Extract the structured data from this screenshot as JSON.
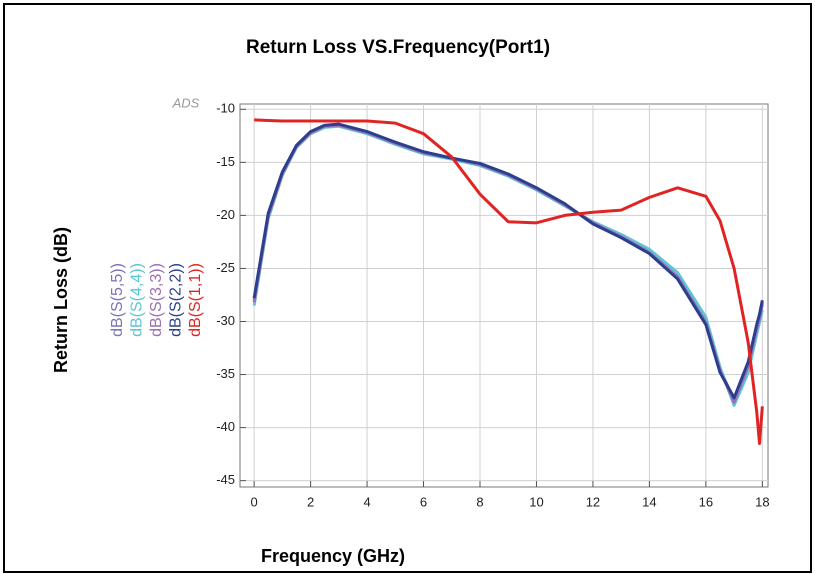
{
  "chart_data": {
    "type": "line",
    "title": "Return Loss VS.Frequency(Port1)",
    "xlabel": "Frequency (GHz)",
    "ylabel": "Return Loss (dB)",
    "annotation": "ADS",
    "x": [
      0,
      0.5,
      1,
      1.5,
      2,
      2.5,
      3,
      4,
      5,
      6,
      7,
      8,
      9,
      10,
      11,
      12,
      13,
      14,
      15,
      16,
      16.5,
      17,
      17.5,
      17.8,
      17.9,
      18
    ],
    "series": [
      {
        "name": "dB(S(5,5))",
        "color": "#7a74b8",
        "values": [
          -28,
          -20,
          -16,
          -13.5,
          -12.2,
          -11.6,
          -11.5,
          -12.2,
          -13.2,
          -14.1,
          -14.6,
          -15.2,
          -16.2,
          -17.5,
          -19,
          -20.7,
          -22,
          -23.5,
          -25.8,
          -30,
          -34.5,
          -37.4,
          -34,
          -30.5,
          -29.5,
          -28.2
        ]
      },
      {
        "name": "dB(S(4,4))",
        "color": "#5cc6d2",
        "values": [
          -28.5,
          -20.3,
          -16.2,
          -13.6,
          -12.3,
          -11.7,
          -11.6,
          -12.3,
          -13.3,
          -14.2,
          -14.7,
          -15.3,
          -16.3,
          -17.6,
          -19.1,
          -20.6,
          -21.8,
          -23.2,
          -25.4,
          -29.6,
          -34.3,
          -37.9,
          -34.8,
          -31.2,
          -30.1,
          -28.9
        ]
      },
      {
        "name": "dB(S(3,3))",
        "color": "#9c6fb6",
        "values": [
          -28.2,
          -20.1,
          -16.1,
          -13.5,
          -12.2,
          -11.6,
          -11.5,
          -12.2,
          -13.2,
          -14.1,
          -14.6,
          -15.2,
          -16.2,
          -17.5,
          -19.0,
          -20.7,
          -22.0,
          -23.5,
          -25.8,
          -30.1,
          -34.6,
          -37.6,
          -34.2,
          -30.7,
          -29.7,
          -28.4
        ]
      },
      {
        "name": "dB(S(2,2))",
        "color": "#2c3f8f",
        "values": [
          -27.8,
          -19.8,
          -15.9,
          -13.4,
          -12.1,
          -11.5,
          -11.4,
          -12.1,
          -13.1,
          -14.0,
          -14.6,
          -15.1,
          -16.1,
          -17.4,
          -18.9,
          -20.8,
          -22.1,
          -23.6,
          -26.0,
          -30.3,
          -34.8,
          -37.2,
          -33.8,
          -30.3,
          -29.3,
          -28.0
        ]
      },
      {
        "name": "dB(S(1,1))",
        "color": "#e02424",
        "values": [
          -11,
          -11.05,
          -11.1,
          -11.1,
          -11.1,
          -11.1,
          -11.1,
          -11.1,
          -11.3,
          -12.3,
          -14.5,
          -18,
          -20.6,
          -20.7,
          -20,
          -19.7,
          -19.5,
          -18.3,
          -17.4,
          -18.2,
          -20.5,
          -25,
          -32,
          -38.5,
          -41.5,
          -38
        ]
      }
    ],
    "xlim": [
      -0.5,
      18.2
    ],
    "xticks": [
      0,
      2,
      4,
      6,
      8,
      10,
      12,
      14,
      16,
      18
    ],
    "ylim": [
      -45.6,
      -9.5
    ],
    "yticks": [
      -10,
      -15,
      -20,
      -25,
      -30,
      -35,
      -40,
      -45
    ],
    "grid": true
  }
}
